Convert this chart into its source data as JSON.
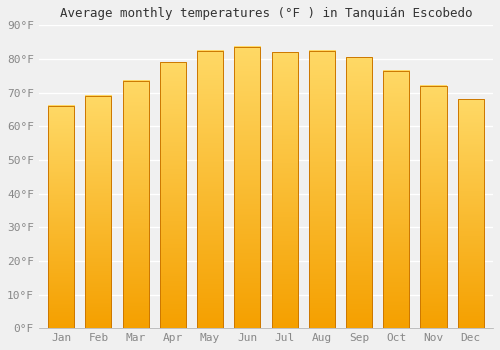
{
  "title": "Average monthly temperatures (°F ) in Tanquián Escobedo",
  "months": [
    "Jan",
    "Feb",
    "Mar",
    "Apr",
    "May",
    "Jun",
    "Jul",
    "Aug",
    "Sep",
    "Oct",
    "Nov",
    "Dec"
  ],
  "values": [
    66,
    69,
    73.5,
    79,
    82.5,
    83.5,
    82,
    82.5,
    80.5,
    76.5,
    72,
    68
  ],
  "bar_color_bottom": "#F5A000",
  "bar_color_top": "#FFD966",
  "bar_edge_color": "#CC7700",
  "background_color": "#f0f0f0",
  "ylim": [
    0,
    90
  ],
  "yticks": [
    0,
    10,
    20,
    30,
    40,
    50,
    60,
    70,
    80,
    90
  ],
  "ytick_labels": [
    "0°F",
    "10°F",
    "20°F",
    "30°F",
    "40°F",
    "50°F",
    "60°F",
    "70°F",
    "80°F",
    "90°F"
  ],
  "title_fontsize": 9,
  "tick_fontsize": 8,
  "grid_color": "#ffffff",
  "bar_width": 0.7
}
